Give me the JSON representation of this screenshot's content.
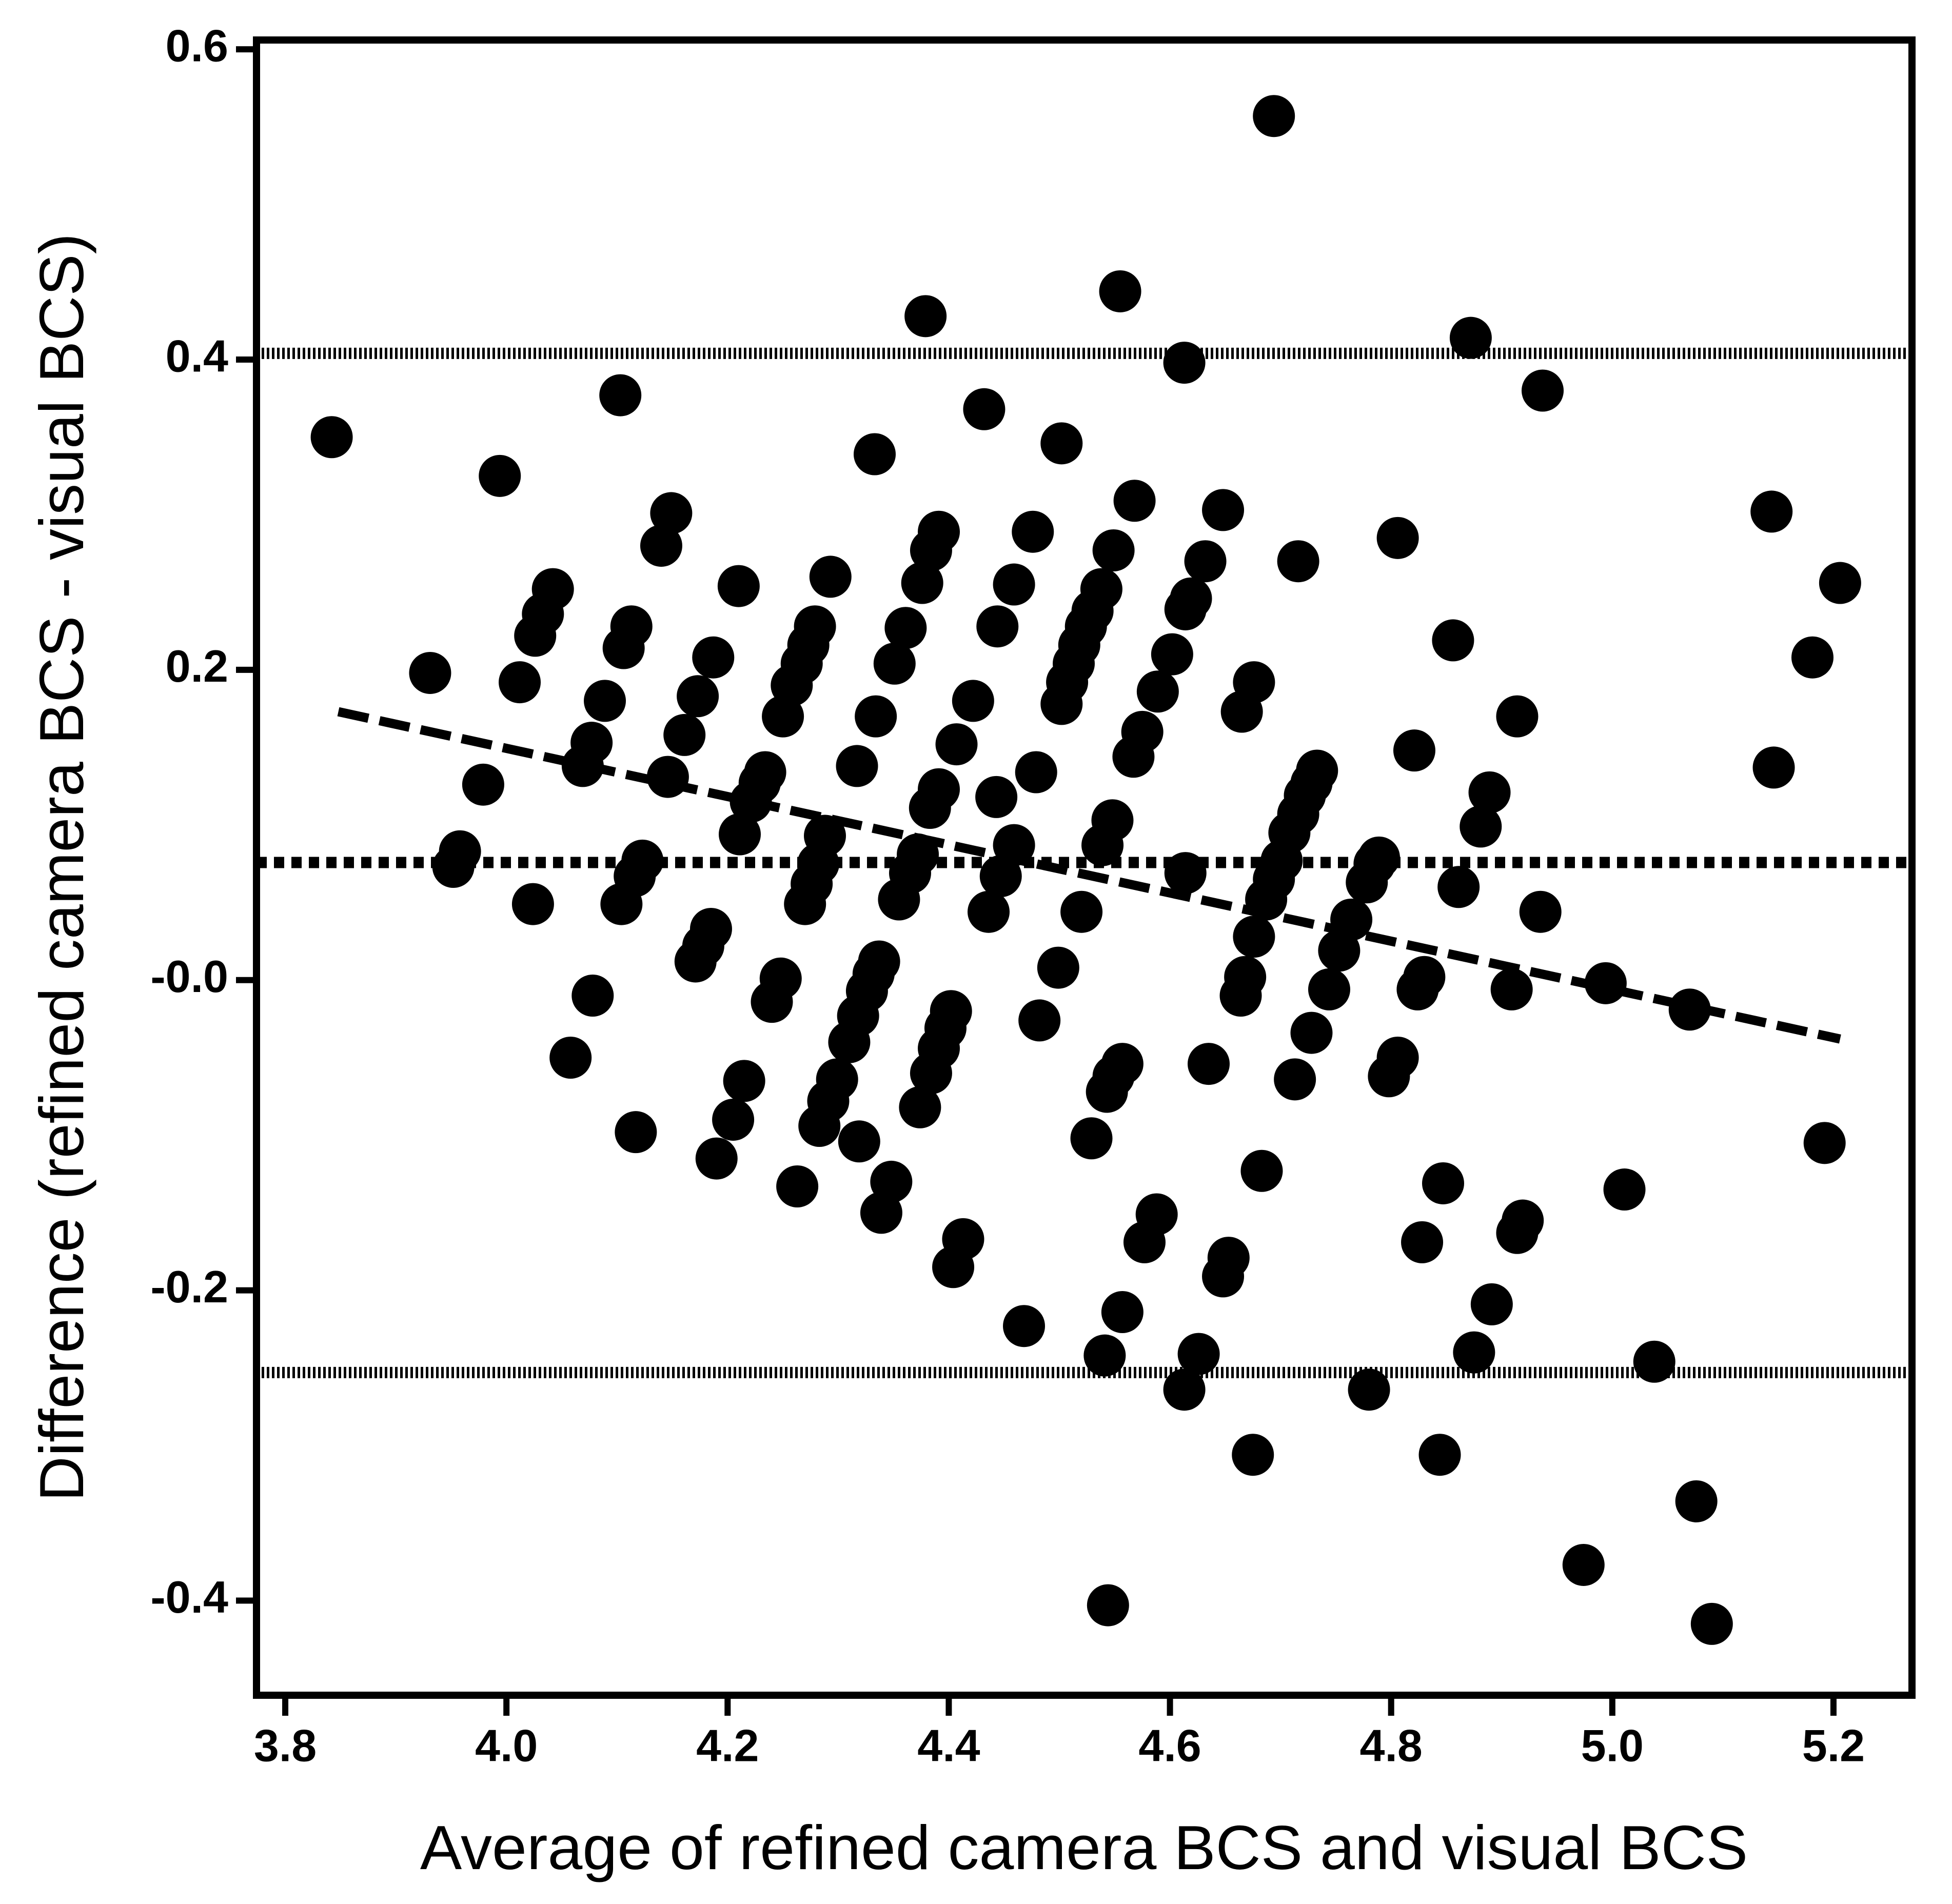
{
  "chart_data": {
    "type": "scatter",
    "x_label": "Average of refined camera BCS and visual BCS",
    "y_label": "Difference (refined camera BCS - visual BCS)",
    "color": "#000000",
    "xlim": [
      3.774,
      5.271
    ],
    "ylim": [
      -0.461,
      0.606
    ],
    "xticks": [
      3.8,
      {
        "value": 4,
        "label": "4.0"
      },
      4.2,
      4.4,
      4.6,
      4.8,
      {
        "value": 5,
        "label": "5.0"
      },
      5.2
    ],
    "yticks": [
      0.6,
      0.4,
      0.2,
      {
        "value": 0,
        "label": "-0.0"
      },
      -0.2,
      -0.4
    ],
    "mean_line": 0.0758,
    "limits_of_agreement": [
      0.404,
      -0.253
    ],
    "regression_line": {
      "x": [
        3.848,
        5.206
      ],
      "y": [
        0.173,
        -0.038
      ]
    },
    "x": [
      3.842,
      3.931,
      3.958,
      3.952,
      3.979,
      3.994,
      4.012,
      4.024,
      4.042,
      4.033,
      4.026,
      4.058,
      4.078,
      4.089,
      4.077,
      4.069,
      4.103,
      4.113,
      4.106,
      4.123,
      4.116,
      4.104,
      4.117,
      4.149,
      4.14,
      4.146,
      4.161,
      4.173,
      4.187,
      4.185,
      4.178,
      4.171,
      4.21,
      4.211,
      4.221,
      4.229,
      4.234,
      4.215,
      4.205,
      4.19,
      4.248,
      4.24,
      4.25,
      4.258,
      4.267,
      4.273,
      4.279,
      4.293,
      4.263,
      4.27,
      4.276,
      4.282,
      4.288,
      4.283,
      4.291,
      4.299,
      4.317,
      4.31,
      4.318,
      4.326,
      4.332,
      4.337,
      4.319,
      4.333,
      4.334,
      4.348,
      4.339,
      4.351,
      4.361,
      4.355,
      4.365,
      4.372,
      4.379,
      4.374,
      4.384,
      4.391,
      4.397,
      4.402,
      4.376,
      4.384,
      4.391,
      4.383,
      4.391,
      4.407,
      4.422,
      4.413,
      4.404,
      4.432,
      4.436,
      4.444,
      4.459,
      4.447,
      4.459,
      4.443,
      4.479,
      4.476,
      4.468,
      4.482,
      4.502,
      4.499,
      4.52,
      4.502,
      4.507,
      4.513,
      4.518,
      4.524,
      4.53,
      4.538,
      4.549,
      4.555,
      4.539,
      4.548,
      4.529,
      4.543,
      4.549,
      4.557,
      4.557,
      4.541,
      4.544,
      4.568,
      4.567,
      4.575,
      4.589,
      4.602,
      4.614,
      4.619,
      4.632,
      4.613,
      4.614,
      4.588,
      4.577,
      4.613,
      4.626,
      4.635,
      4.648,
      4.653,
      4.648,
      4.668,
      4.664,
      4.665,
      4.676,
      4.676,
      4.683,
      4.675,
      4.694,
      4.687,
      4.694,
      4.701,
      4.708,
      4.716,
      4.722,
      4.728,
      4.733,
      4.716,
      4.713,
      4.728,
      4.744,
      4.753,
      4.764,
      4.778,
      4.785,
      4.789,
      4.806,
      4.821,
      4.798,
      4.806,
      4.78,
      4.824,
      4.83,
      4.828,
      4.847,
      4.844,
      4.856,
      4.861,
      4.872,
      4.881,
      4.889,
      4.909,
      4.914,
      4.875,
      4.891,
      4.914,
      4.919,
      4.935,
      4.937,
      4.974,
      4.994,
      5.011,
      5.038,
      5.07,
      5.076,
      5.09,
      5.144,
      5.146,
      5.181,
      5.192,
      5.206
    ],
    "y": [
      0.35,
      0.198,
      0.083,
      0.073,
      0.126,
      0.325,
      0.192,
      0.049,
      0.252,
      0.236,
      0.222,
      -0.05,
      -0.01,
      0.18,
      0.153,
      0.138,
      0.377,
      0.228,
      0.214,
      0.077,
      0.067,
      0.049,
      -0.098,
      0.301,
      0.28,
      0.131,
      0.158,
      0.183,
      0.208,
      0.033,
      0.022,
      0.012,
      0.254,
      0.094,
      0.115,
      0.127,
      0.134,
      -0.065,
      -0.09,
      -0.115,
      0.001,
      -0.014,
      0.17,
      0.19,
      0.204,
      0.216,
      0.228,
      0.26,
      -0.133,
      0.049,
      0.062,
      0.075,
      0.093,
      -0.094,
      -0.078,
      -0.064,
      0.138,
      -0.04,
      -0.023,
      -0.007,
      0.004,
      0.012,
      -0.104,
      0.339,
      0.17,
      -0.13,
      -0.15,
      0.204,
      0.227,
      0.052,
      0.069,
      0.081,
      0.428,
      -0.082,
      -0.06,
      -0.044,
      -0.031,
      -0.02,
      0.256,
      0.277,
      0.289,
      0.111,
      0.123,
      0.152,
      0.18,
      -0.167,
      -0.185,
      0.368,
      0.044,
      0.228,
      0.255,
      0.067,
      0.087,
      0.118,
      0.134,
      0.289,
      -0.223,
      -0.026,
      0.346,
      0.008,
      0.044,
      0.178,
      0.192,
      0.204,
      0.216,
      0.228,
      0.238,
      0.252,
      0.277,
      0.444,
      0.087,
      0.103,
      -0.102,
      -0.072,
      -0.062,
      -0.054,
      -0.214,
      -0.242,
      -0.403,
      0.309,
      0.144,
      0.16,
      0.186,
      0.21,
      0.239,
      0.246,
      0.27,
      0.398,
      0.069,
      -0.151,
      -0.169,
      -0.264,
      -0.241,
      -0.054,
      0.303,
      -0.179,
      -0.191,
      0.002,
      -0.01,
      0.173,
      0.192,
      0.028,
      -0.123,
      -0.306,
      0.557,
      0.052,
      0.065,
      0.077,
      0.095,
      0.107,
      0.119,
      0.127,
      0.135,
      0.27,
      -0.064,
      -0.034,
      -0.006,
      0.019,
      0.039,
      0.063,
      0.075,
      0.079,
      0.285,
      0.148,
      -0.062,
      -0.05,
      -0.264,
      -0.006,
      0.002,
      -0.169,
      -0.131,
      -0.306,
      0.219,
      0.06,
      0.414,
      0.099,
      0.121,
      -0.006,
      0.17,
      -0.24,
      -0.209,
      -0.163,
      -0.155,
      0.044,
      0.38,
      -0.377,
      -0.002,
      -0.135,
      -0.246,
      -0.019,
      -0.336,
      -0.415,
      0.302,
      0.137,
      0.208,
      -0.105,
      0.256
    ]
  }
}
